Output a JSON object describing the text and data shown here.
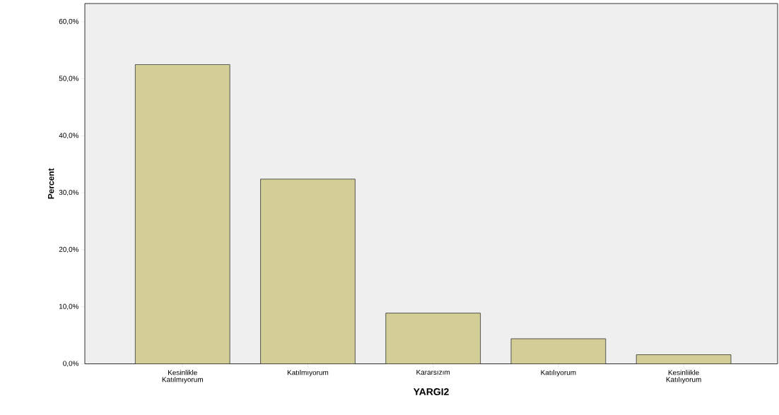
{
  "chart_data": {
    "type": "bar",
    "xlabel": "YARGI2",
    "ylabel": "Percent",
    "categories": [
      "Kesinlikle Katılmıyorum",
      "Katılmıyorum",
      "Kararsızım",
      "Katılıyorum",
      "Kesinliikle Katılıyorum"
    ],
    "values": [
      52.5,
      32.4,
      8.9,
      4.4,
      1.6
    ],
    "color": "#d3cd96",
    "ylim": [
      0,
      63.2
    ],
    "yticks": [
      {
        "value": 0,
        "label": "0,0%"
      },
      {
        "value": 10,
        "label": "10,0%"
      },
      {
        "value": 20,
        "label": "20,0%"
      },
      {
        "value": 30,
        "label": "30,0%"
      },
      {
        "value": 40,
        "label": "40,0%"
      },
      {
        "value": 50,
        "label": "50,0%"
      },
      {
        "value": 60,
        "label": "60,0%"
      }
    ],
    "grid": false
  }
}
